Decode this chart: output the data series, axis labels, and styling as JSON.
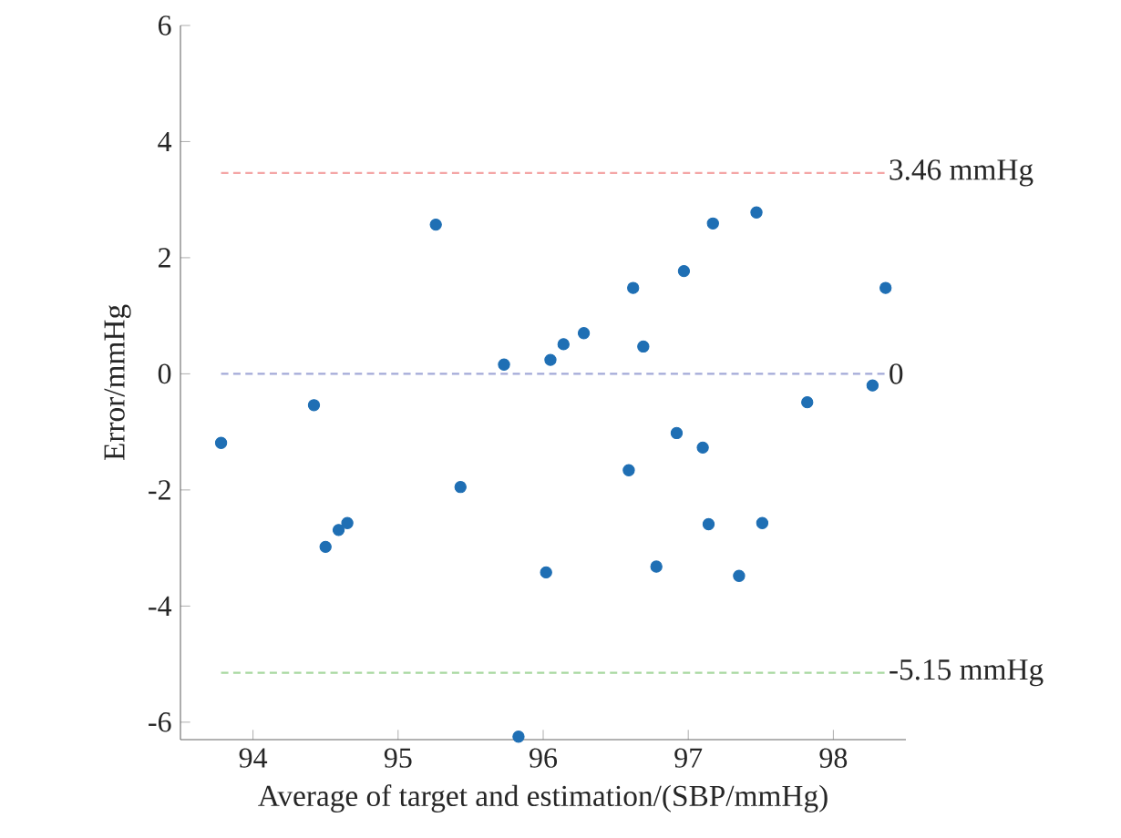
{
  "chart_data": {
    "type": "scatter",
    "xlabel": "Average of target and estimation/(SBP/mmHg)",
    "ylabel": "Error/mmHg",
    "xlim": [
      93.5,
      98.5
    ],
    "xticks": [
      94,
      95,
      96,
      97,
      98
    ],
    "ylim": [
      -6.3,
      6
    ],
    "yticks": [
      -6,
      -4,
      -2,
      0,
      2,
      4,
      6
    ],
    "grid": false,
    "series": [
      {
        "color": "#1f6fb4",
        "x": [
          93.78,
          94.42,
          94.5,
          94.59,
          94.65,
          95.26,
          95.43,
          95.73,
          95.83,
          96.02,
          96.05,
          96.14,
          96.28,
          96.62,
          96.69,
          96.97,
          97.17,
          97.47,
          98.36,
          97.82,
          98.27,
          96.59,
          96.92,
          97.1,
          97.14,
          97.51,
          96.78,
          97.35
        ],
        "values": [
          -1.19,
          -0.54,
          -2.98,
          -2.69,
          -2.57,
          2.57,
          -1.95,
          0.16,
          -6.25,
          -3.42,
          0.24,
          0.51,
          0.7,
          1.48,
          0.47,
          1.77,
          2.59,
          2.78,
          1.48,
          -0.49,
          -0.2,
          -1.66,
          -1.02,
          -1.27,
          -2.59,
          -2.57,
          -3.32,
          -3.48
        ]
      }
    ],
    "ref_lines": [
      {
        "axis": "y",
        "value": 3.46,
        "label": "3.46 mmHg",
        "color": "#f4a6a6",
        "line_style": "dashed"
      },
      {
        "axis": "y",
        "value": 0,
        "label": "0",
        "color": "#a3aad8",
        "line_style": "dashed"
      },
      {
        "axis": "y",
        "value": -5.15,
        "label": "-5.15 mmHg",
        "color": "#a8d8a0",
        "line_style": "dashed"
      }
    ]
  }
}
